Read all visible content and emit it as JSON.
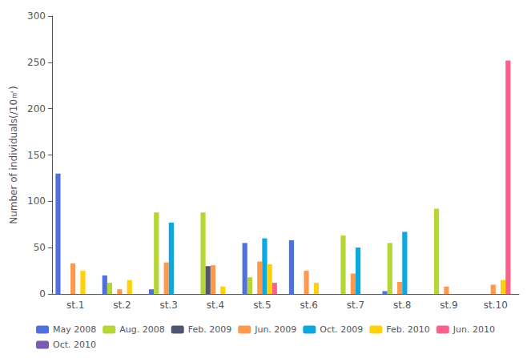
{
  "chart_data": {
    "type": "bar",
    "ylabel": "Number of individuals(/10㎡)",
    "categories": [
      "st.1",
      "st.2",
      "st.3",
      "st.4",
      "st.5",
      "st.6",
      "st.7",
      "st.8",
      "st.9",
      "st.10"
    ],
    "series": [
      {
        "name": "May 2008",
        "values": [
          130,
          20,
          5,
          0,
          55,
          58,
          0,
          3,
          0,
          0
        ]
      },
      {
        "name": "Aug. 2008",
        "values": [
          0,
          12,
          88,
          88,
          18,
          0,
          63,
          55,
          92,
          0
        ]
      },
      {
        "name": "Feb. 2009",
        "values": [
          0,
          0,
          0,
          30,
          0,
          0,
          0,
          0,
          0,
          0
        ]
      },
      {
        "name": "Jun. 2009",
        "values": [
          33,
          5,
          34,
          31,
          35,
          25,
          22,
          13,
          8,
          10
        ]
      },
      {
        "name": "Oct. 2009",
        "values": [
          0,
          0,
          77,
          0,
          60,
          0,
          50,
          67,
          0,
          0
        ]
      },
      {
        "name": "Feb. 2010",
        "values": [
          25,
          15,
          0,
          8,
          32,
          12,
          0,
          0,
          0,
          15
        ]
      },
      {
        "name": "Jun. 2010",
        "values": [
          0,
          0,
          0,
          0,
          12,
          0,
          0,
          0,
          0,
          252
        ]
      },
      {
        "name": "Oct. 2010",
        "values": [
          0,
          0,
          0,
          0,
          0,
          0,
          0,
          0,
          0,
          0
        ]
      }
    ],
    "ylim": [
      0,
      300
    ],
    "yticks": [
      0,
      50,
      100,
      150,
      200,
      250,
      300
    ],
    "grid": false,
    "legend": "bottom"
  }
}
